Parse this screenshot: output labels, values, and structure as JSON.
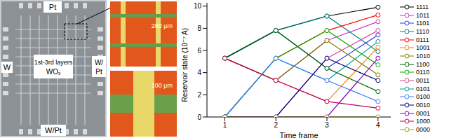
{
  "image_panel": {
    "chip_labels": {
      "top": "Pt",
      "left": "W",
      "right": [
        "W/",
        "Pt"
      ],
      "bottom": "W/Pt",
      "center": [
        "1st-3rd layers",
        "WOₓ"
      ]
    },
    "zoom_scale_bars": [
      "200 µm",
      "100 µm"
    ]
  },
  "chart_data": {
    "type": "line",
    "xlabel": "Time frame",
    "ylabel": "Reservoir state (10⁻⁷ A)",
    "x": [
      1,
      2,
      3,
      4
    ],
    "xlim": [
      0.65,
      4.25
    ],
    "xticks": [
      1,
      2,
      3,
      4
    ],
    "ylim": [
      0,
      10.3
    ],
    "yticks": [
      0,
      2,
      4,
      6,
      8,
      10
    ],
    "marker": "open_circle",
    "legend": "right",
    "series": [
      {
        "name": "1111",
        "color": "#000000",
        "values": [
          5.3,
          7.8,
          9.1,
          9.9
        ]
      },
      {
        "name": "1011",
        "color": "#cc33cc",
        "values": [
          5.3,
          3.3,
          6.9,
          8.6
        ]
      },
      {
        "name": "1101",
        "color": "#3333ff",
        "values": [
          5.3,
          7.8,
          4.4,
          7.4
        ]
      },
      {
        "name": "1110",
        "color": "#008080",
        "values": [
          5.3,
          7.8,
          9.1,
          5.9
        ]
      },
      {
        "name": "0111",
        "color": "#ff0000",
        "values": [
          0,
          5.3,
          7.8,
          9.2
        ]
      },
      {
        "name": "1001",
        "color": "#ff8000",
        "values": [
          5.3,
          3.3,
          1.4,
          6.3
        ]
      },
      {
        "name": "1010",
        "color": "#808000",
        "values": [
          5.3,
          3.3,
          6.9,
          3.8
        ]
      },
      {
        "name": "1100",
        "color": "#006400",
        "values": [
          5.3,
          7.8,
          4.4,
          2.3
        ]
      },
      {
        "name": "0110",
        "color": "#00b000",
        "values": [
          0,
          5.3,
          7.8,
          4.7
        ]
      },
      {
        "name": "0011",
        "color": "#e0409a",
        "values": [
          0,
          0,
          5.3,
          7.8
        ]
      },
      {
        "name": "0101",
        "color": "#00a0a0",
        "values": [
          0,
          5.3,
          3.3,
          6.8
        ]
      },
      {
        "name": "0100",
        "color": "#4080ff",
        "values": [
          0,
          5.3,
          3.3,
          1.4
        ]
      },
      {
        "name": "0010",
        "color": "#000080",
        "values": [
          0,
          0,
          5.3,
          3.3
        ]
      },
      {
        "name": "0001",
        "color": "#8000c0",
        "values": [
          0,
          0,
          0,
          5.3
        ]
      },
      {
        "name": "1000",
        "color": "#c00060",
        "values": [
          5.3,
          3.3,
          1.4,
          0.8
        ]
      },
      {
        "name": "0000",
        "color": "#a0a000",
        "values": [
          0,
          0,
          0,
          0
        ]
      }
    ]
  }
}
